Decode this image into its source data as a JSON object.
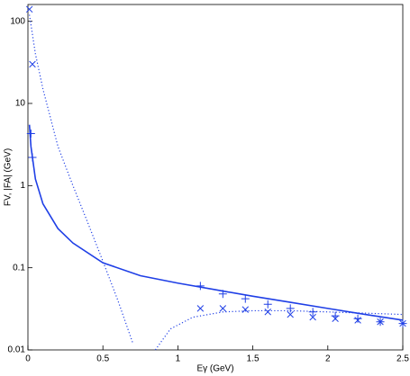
{
  "chart_data": {
    "type": "line",
    "x_label": "Eγ (GeV)",
    "y_label": "FV, |FA| (GeV)",
    "xlim": [
      0,
      2.5
    ],
    "xticks": [
      0,
      0.5,
      1,
      1.5,
      2,
      2.5
    ],
    "ylim": [
      0.01,
      160
    ],
    "yticks": [
      0.01,
      0.1,
      1,
      10,
      100
    ],
    "log_y": true,
    "series": [
      {
        "style": "solid",
        "color": "#1f3fe6",
        "x": [
          0.01,
          0.02,
          0.05,
          0.1,
          0.2,
          0.3,
          0.5,
          0.75,
          1.0,
          1.25,
          1.5,
          1.75,
          2.0,
          2.25,
          2.5
        ],
        "values": [
          5.5,
          3,
          1.2,
          0.6,
          0.3,
          0.2,
          0.115,
          0.08,
          0.065,
          0.054,
          0.045,
          0.038,
          0.032,
          0.027,
          0.023
        ]
      },
      {
        "style": "dotted",
        "color": "#1f3fe6",
        "x": [
          0.01,
          0.05,
          0.1,
          0.2,
          0.3,
          0.4,
          0.5,
          0.6,
          0.7,
          0.75,
          0.85,
          0.95,
          1.1,
          1.3,
          1.5,
          1.75,
          2.0,
          2.25,
          2.5
        ],
        "values": [
          120,
          40,
          15,
          3,
          1,
          0.35,
          0.12,
          0.04,
          0.012,
          null,
          0.01,
          0.018,
          0.025,
          0.029,
          0.03,
          0.03,
          0.029,
          0.028,
          0.027
        ]
      },
      {
        "style": "plus",
        "color": "#1f3fe6",
        "x": [
          0.02,
          0.03,
          1.15,
          1.3,
          1.45,
          1.6,
          1.75,
          1.9,
          2.05,
          2.2,
          2.35,
          2.5
        ],
        "values": [
          4.3,
          2.2,
          0.06,
          0.048,
          0.042,
          0.036,
          0.032,
          0.029,
          0.026,
          0.024,
          0.022,
          0.021
        ]
      },
      {
        "style": "cross",
        "color": "#1f3fe6",
        "x": [
          0.01,
          0.03,
          1.15,
          1.3,
          1.45,
          1.6,
          1.75,
          1.9,
          2.05,
          2.2,
          2.35,
          2.5
        ],
        "values": [
          140,
          30,
          0.032,
          0.032,
          0.031,
          0.029,
          0.027,
          0.025,
          0.024,
          0.023,
          0.022,
          0.021
        ]
      }
    ]
  }
}
